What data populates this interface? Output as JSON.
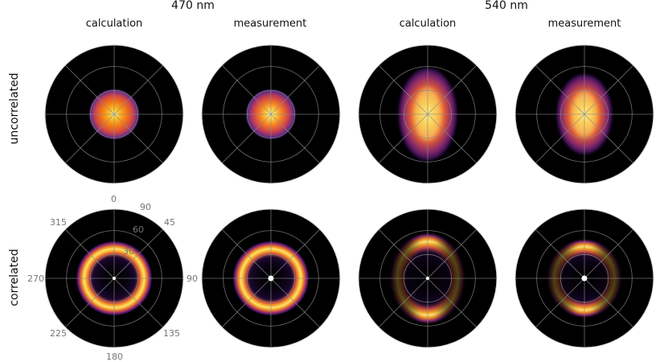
{
  "wavelengths": [
    "470 nm",
    "540 nm"
  ],
  "column_labels": [
    "calculation",
    "measurement",
    "calculation",
    "measurement"
  ],
  "row_labels": [
    "uncorrelated",
    "correlated"
  ],
  "polar_ticks": {
    "azimuth": [
      "0",
      "45",
      "90",
      "135",
      "180",
      "225",
      "270",
      "315"
    ],
    "radial": [
      "30",
      "60",
      "90"
    ]
  },
  "colors": {
    "background": "#000000",
    "grid": "#8a8a8a",
    "colormap": "inferno"
  },
  "panels": [
    {
      "row": "uncorrelated",
      "column": "calculation",
      "wavelength": "470 nm",
      "pattern": "spot"
    },
    {
      "row": "uncorrelated",
      "column": "measurement",
      "wavelength": "470 nm",
      "pattern": "spot"
    },
    {
      "row": "uncorrelated",
      "column": "calculation",
      "wavelength": "540 nm",
      "pattern": "elongated-spot"
    },
    {
      "row": "uncorrelated",
      "column": "measurement",
      "wavelength": "540 nm",
      "pattern": "elongated-spot"
    },
    {
      "row": "correlated",
      "column": "calculation",
      "wavelength": "470 nm",
      "pattern": "ring"
    },
    {
      "row": "correlated",
      "column": "measurement",
      "wavelength": "470 nm",
      "pattern": "ring"
    },
    {
      "row": "correlated",
      "column": "calculation",
      "wavelength": "540 nm",
      "pattern": "split-ring"
    },
    {
      "row": "correlated",
      "column": "measurement",
      "wavelength": "540 nm",
      "pattern": "split-ring"
    }
  ]
}
